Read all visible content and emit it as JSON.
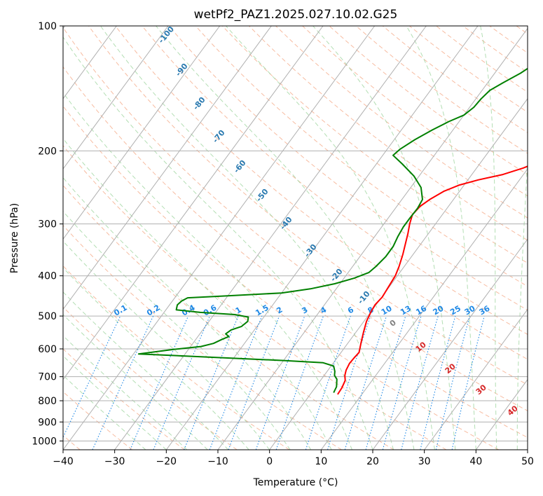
{
  "chart_data": {
    "type": "line",
    "title": "wetPf2_PAZ1.2025.027.10.02.G25",
    "xlabel": "Temperature (°C)",
    "ylabel": "Pressure (hPa)",
    "xlim": [
      -40,
      50
    ],
    "ylim": [
      1050,
      100
    ],
    "y_scale": "log",
    "x_ticks": [
      -40,
      -30,
      -20,
      -10,
      0,
      10,
      20,
      30,
      40,
      50
    ],
    "y_ticks": [
      100,
      200,
      300,
      400,
      500,
      600,
      700,
      800,
      900,
      1000
    ],
    "grid": true,
    "series": [
      {
        "color": "#ff0000",
        "points": [
          [
            5.3,
            772
          ],
          [
            5.2,
            745
          ],
          [
            4.8,
            715
          ],
          [
            4.0,
            695
          ],
          [
            3.5,
            675
          ],
          [
            3.2,
            650
          ],
          [
            3.3,
            630
          ],
          [
            3.5,
            612
          ],
          [
            2.5,
            580
          ],
          [
            1.5,
            548
          ],
          [
            0.5,
            515
          ],
          [
            0.0,
            488
          ],
          [
            -0.2,
            470
          ],
          [
            0.1,
            450
          ],
          [
            -0.2,
            420
          ],
          [
            -0.4,
            400
          ],
          [
            -1.0,
            380
          ],
          [
            -2.0,
            355
          ],
          [
            -3.0,
            335
          ],
          [
            -4.0,
            316
          ],
          [
            -5.0,
            300
          ],
          [
            -5.8,
            285
          ],
          [
            -5.5,
            272
          ],
          [
            -4.6,
            262
          ],
          [
            -3.0,
            250
          ],
          [
            -1.0,
            242
          ],
          [
            2.0,
            235
          ],
          [
            6.0,
            228
          ],
          [
            9.0,
            220
          ],
          [
            12.0,
            210
          ],
          [
            15.0,
            198
          ],
          [
            17.0,
            188
          ],
          [
            19.0,
            178
          ],
          [
            21.0,
            168
          ],
          [
            23.0,
            158
          ],
          [
            25.5,
            150
          ],
          [
            28.0,
            144
          ],
          [
            30.0,
            137
          ],
          [
            31.5,
            130
          ],
          [
            33.0,
            122
          ],
          [
            35.0,
            115
          ],
          [
            37.0,
            110
          ],
          [
            39.0,
            105
          ],
          [
            40.5,
            100
          ]
        ]
      },
      {
        "color": "#008000",
        "points": [
          [
            4.3,
            765
          ],
          [
            4.0,
            740
          ],
          [
            3.0,
            710
          ],
          [
            2.0,
            695
          ],
          [
            1.5,
            680
          ],
          [
            0.5,
            660
          ],
          [
            -2.0,
            648
          ],
          [
            -10.0,
            640
          ],
          [
            -20.0,
            632
          ],
          [
            -30.0,
            624
          ],
          [
            -39.0,
            617
          ],
          [
            -33.0,
            602
          ],
          [
            -28.0,
            592
          ],
          [
            -26.0,
            582
          ],
          [
            -25.0,
            570
          ],
          [
            -24.0,
            560
          ],
          [
            -25.0,
            552
          ],
          [
            -24.5,
            540
          ],
          [
            -23.0,
            530
          ],
          [
            -22.5,
            515
          ],
          [
            -23.0,
            503
          ],
          [
            -26.0,
            496
          ],
          [
            -33.0,
            490
          ],
          [
            -38.0,
            483
          ],
          [
            -38.5,
            470
          ],
          [
            -38.2,
            460
          ],
          [
            -37.5,
            452
          ],
          [
            -30.0,
            447
          ],
          [
            -20.0,
            440
          ],
          [
            -15.0,
            430
          ],
          [
            -11.0,
            418
          ],
          [
            -8.0,
            405
          ],
          [
            -6.0,
            393
          ],
          [
            -5.5,
            380
          ],
          [
            -5.0,
            360
          ],
          [
            -5.0,
            340
          ],
          [
            -5.5,
            322
          ],
          [
            -5.8,
            305
          ],
          [
            -5.8,
            290
          ],
          [
            -5.7,
            275
          ],
          [
            -6.0,
            262
          ],
          [
            -8.0,
            245
          ],
          [
            -11.0,
            230
          ],
          [
            -15.0,
            215
          ],
          [
            -18.0,
            205
          ],
          [
            -17.5,
            198
          ],
          [
            -16.0,
            188
          ],
          [
            -14.0,
            178
          ],
          [
            -12.0,
            170
          ],
          [
            -10.0,
            164
          ],
          [
            -9.2,
            157
          ],
          [
            -9.0,
            150
          ],
          [
            -8.5,
            143
          ],
          [
            -7.0,
            137
          ],
          [
            -5.0,
            130
          ],
          [
            -3.5,
            123
          ],
          [
            -1.5,
            116
          ],
          [
            0.0,
            110
          ],
          [
            1.5,
            105
          ],
          [
            3.0,
            100
          ]
        ]
      }
    ],
    "dry_adiabat_labels": [
      "-100",
      "-90",
      "-80",
      "-70",
      "-60",
      "-50",
      "-40",
      "-30",
      "-20",
      "-10",
      "0",
      "10",
      "20",
      "30",
      "40"
    ],
    "mixing_ratio_labels": [
      "0.1",
      "0.2",
      "0.4",
      "0.6",
      "1",
      "1.5",
      "2",
      "3",
      "4",
      "6",
      "8",
      "10",
      "13",
      "16",
      "20",
      "25",
      "30",
      "36"
    ]
  },
  "colors": {
    "isotherm": "#b0b0b0",
    "isobar": "#b0b0b0",
    "dry_adiabat": "#f4a582",
    "moist_adiabat": "#a6d8a6",
    "mixing_ratio": "#1e88e5",
    "dry_label": "#2a7ab0",
    "moist_label_warm": "#d62728",
    "moist_label_cold": "#808080"
  }
}
